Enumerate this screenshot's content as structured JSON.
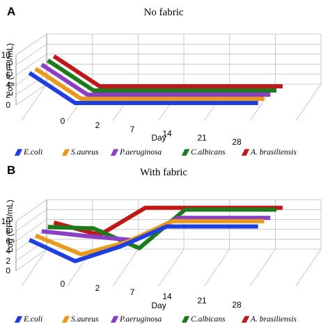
{
  "chart_data": [
    {
      "type": "line",
      "panel_label": "A",
      "title": "No fabric",
      "xlabel": "Day",
      "ylabel": "Log (CFU/mL)",
      "categories": [
        "0",
        "2",
        "7",
        "14",
        "21",
        "28"
      ],
      "yticks": [
        "0",
        "2",
        "4",
        "6",
        "8",
        "10"
      ],
      "ylim": [
        0,
        10
      ],
      "legend_position": "bottom",
      "series": [
        {
          "name": "E.coli",
          "color": "#1f3fe0",
          "values": [
            6,
            0,
            0,
            0,
            0,
            0
          ]
        },
        {
          "name": "S.aureus",
          "color": "#e89a1c",
          "values": [
            6,
            0,
            0,
            0,
            0,
            0
          ]
        },
        {
          "name": "P.aeruginosa",
          "color": "#8a3fc4",
          "values": [
            6,
            0,
            0,
            0,
            0,
            0
          ]
        },
        {
          "name": "C.albicans",
          "color": "#1d7a1d",
          "values": [
            6,
            0,
            0,
            0,
            0,
            0
          ]
        },
        {
          "name": "A. brasiliensis",
          "color": "#c01818",
          "values": [
            6,
            0,
            0,
            0,
            0,
            0
          ]
        }
      ]
    },
    {
      "type": "line",
      "panel_label": "B",
      "title": "With fabric",
      "xlabel": "Day",
      "ylabel": "Log (CFU/mL)",
      "categories": [
        "0",
        "2",
        "7",
        "14",
        "21",
        "28"
      ],
      "yticks": [
        "0",
        "2",
        "4",
        "6",
        "8",
        "10"
      ],
      "ylim": [
        0,
        10
      ],
      "legend_position": "bottom",
      "series": [
        {
          "name": "E.coli",
          "color": "#1f3fe0",
          "values": [
            5.8,
            1.5,
            4.5,
            8.5,
            8.5,
            8.5
          ]
        },
        {
          "name": "S.aureus",
          "color": "#e89a1c",
          "values": [
            5.8,
            2.0,
            4.5,
            8.7,
            8.7,
            8.7
          ]
        },
        {
          "name": "P.aeruginosa",
          "color": "#8a3fc4",
          "values": [
            5.8,
            4.8,
            4.0,
            8.5,
            8.5,
            8.5
          ]
        },
        {
          "name": "C.albicans",
          "color": "#1d7a1d",
          "values": [
            5.8,
            5.5,
            1.5,
            9.3,
            9.3,
            9.3
          ]
        },
        {
          "name": "A. brasiliensis",
          "color": "#c01818",
          "values": [
            5.8,
            3.3,
            8.8,
            8.8,
            8.8,
            8.8
          ]
        }
      ]
    }
  ]
}
